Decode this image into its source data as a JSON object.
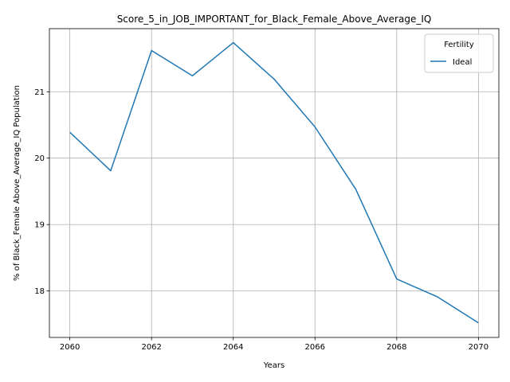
{
  "chart_data": {
    "type": "line",
    "title": "Score_5_in_JOB_IMPORTANT_for_Black_Female_Above_Average_IQ",
    "xlabel": "Years",
    "ylabel": "% of Black_Female Above_Average_IQ Population",
    "xlim": [
      2059.5,
      2070.5
    ],
    "ylim": [
      17.3,
      21.95
    ],
    "xticks": [
      2060,
      2062,
      2064,
      2066,
      2068,
      2070
    ],
    "yticks": [
      18,
      19,
      20,
      21
    ],
    "grid": true,
    "legend": {
      "title": "Fertility",
      "placement": "top-right"
    },
    "series": [
      {
        "name": "Ideal",
        "color": "#1f77b4",
        "x": [
          2060,
          2061,
          2062,
          2063,
          2064,
          2065,
          2066,
          2067,
          2068,
          2069,
          2070
        ],
        "y": [
          20.39,
          19.81,
          21.62,
          21.24,
          21.74,
          21.19,
          20.47,
          19.53,
          18.18,
          17.91,
          17.52
        ]
      }
    ]
  }
}
